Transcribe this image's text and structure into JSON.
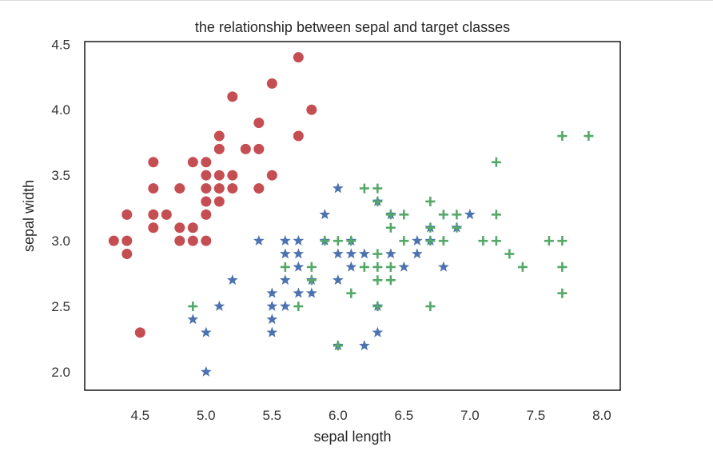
{
  "chart_data": {
    "type": "scatter",
    "title": "the relationship between sepal and target classes",
    "xlabel": "sepal length",
    "ylabel": "sepal width",
    "xlim": [
      4.08,
      8.14
    ],
    "ylim": [
      1.86,
      4.52
    ],
    "xticks": [
      "4.5",
      "5.0",
      "5.5",
      "6.0",
      "6.5",
      "7.0",
      "7.5",
      "8.0"
    ],
    "yticks": [
      "2.0",
      "2.5",
      "3.0",
      "3.5",
      "4.0",
      "4.5"
    ],
    "grid": false,
    "series": [
      {
        "marker": "circle",
        "color": "#c44e52",
        "points": [
          [
            4.3,
            3.0
          ],
          [
            4.4,
            3.2
          ],
          [
            4.4,
            3.0
          ],
          [
            4.4,
            2.9
          ],
          [
            4.5,
            2.3
          ],
          [
            4.6,
            3.6
          ],
          [
            4.6,
            3.4
          ],
          [
            4.6,
            3.2
          ],
          [
            4.6,
            3.1
          ],
          [
            4.7,
            3.2
          ],
          [
            4.8,
            3.4
          ],
          [
            4.8,
            3.1
          ],
          [
            4.8,
            3.0
          ],
          [
            4.9,
            3.6
          ],
          [
            4.9,
            3.1
          ],
          [
            4.9,
            3.0
          ],
          [
            5.0,
            3.6
          ],
          [
            5.0,
            3.5
          ],
          [
            5.0,
            3.4
          ],
          [
            5.0,
            3.3
          ],
          [
            5.0,
            3.2
          ],
          [
            5.0,
            3.0
          ],
          [
            5.1,
            3.8
          ],
          [
            5.1,
            3.7
          ],
          [
            5.1,
            3.5
          ],
          [
            5.1,
            3.4
          ],
          [
            5.1,
            3.3
          ],
          [
            5.2,
            4.1
          ],
          [
            5.2,
            3.5
          ],
          [
            5.2,
            3.4
          ],
          [
            5.3,
            3.7
          ],
          [
            5.4,
            3.9
          ],
          [
            5.4,
            3.7
          ],
          [
            5.4,
            3.4
          ],
          [
            5.5,
            4.2
          ],
          [
            5.5,
            3.5
          ],
          [
            5.7,
            4.4
          ],
          [
            5.7,
            3.8
          ],
          [
            5.8,
            4.0
          ]
        ]
      },
      {
        "marker": "star",
        "color": "#4c72b0",
        "points": [
          [
            4.9,
            2.4
          ],
          [
            5.0,
            2.3
          ],
          [
            5.0,
            2.0
          ],
          [
            5.1,
            2.5
          ],
          [
            5.2,
            2.7
          ],
          [
            5.4,
            3.0
          ],
          [
            5.5,
            2.6
          ],
          [
            5.5,
            2.5
          ],
          [
            5.5,
            2.4
          ],
          [
            5.5,
            2.3
          ],
          [
            5.6,
            3.0
          ],
          [
            5.6,
            2.9
          ],
          [
            5.6,
            2.7
          ],
          [
            5.6,
            2.5
          ],
          [
            5.7,
            3.0
          ],
          [
            5.7,
            2.9
          ],
          [
            5.7,
            2.8
          ],
          [
            5.7,
            2.6
          ],
          [
            5.8,
            2.7
          ],
          [
            5.8,
            2.6
          ],
          [
            5.9,
            3.2
          ],
          [
            5.9,
            3.0
          ],
          [
            6.0,
            3.4
          ],
          [
            6.0,
            2.9
          ],
          [
            6.0,
            2.7
          ],
          [
            6.0,
            2.2
          ],
          [
            6.1,
            3.0
          ],
          [
            6.1,
            2.9
          ],
          [
            6.1,
            2.8
          ],
          [
            6.2,
            2.9
          ],
          [
            6.2,
            2.2
          ],
          [
            6.3,
            3.3
          ],
          [
            6.3,
            2.5
          ],
          [
            6.3,
            2.3
          ],
          [
            6.4,
            3.2
          ],
          [
            6.4,
            2.9
          ],
          [
            6.5,
            2.8
          ],
          [
            6.6,
            3.0
          ],
          [
            6.6,
            2.9
          ],
          [
            6.7,
            3.1
          ],
          [
            6.7,
            3.0
          ],
          [
            6.8,
            2.8
          ],
          [
            6.9,
            3.1
          ],
          [
            7.0,
            3.2
          ]
        ]
      },
      {
        "marker": "plus",
        "color": "#55a868",
        "points": [
          [
            4.9,
            2.5
          ],
          [
            5.6,
            2.8
          ],
          [
            5.7,
            2.5
          ],
          [
            5.8,
            2.8
          ],
          [
            5.8,
            2.7
          ],
          [
            5.9,
            3.0
          ],
          [
            6.0,
            3.0
          ],
          [
            6.0,
            2.2
          ],
          [
            6.1,
            3.0
          ],
          [
            6.1,
            2.6
          ],
          [
            6.2,
            3.4
          ],
          [
            6.2,
            2.8
          ],
          [
            6.3,
            3.4
          ],
          [
            6.3,
            3.3
          ],
          [
            6.3,
            2.9
          ],
          [
            6.3,
            2.8
          ],
          [
            6.3,
            2.7
          ],
          [
            6.3,
            2.5
          ],
          [
            6.4,
            3.2
          ],
          [
            6.4,
            3.1
          ],
          [
            6.4,
            2.8
          ],
          [
            6.4,
            2.7
          ],
          [
            6.5,
            3.2
          ],
          [
            6.5,
            3.0
          ],
          [
            6.7,
            3.3
          ],
          [
            6.7,
            3.1
          ],
          [
            6.7,
            3.0
          ],
          [
            6.7,
            2.5
          ],
          [
            6.8,
            3.2
          ],
          [
            6.8,
            3.0
          ],
          [
            6.9,
            3.2
          ],
          [
            6.9,
            3.1
          ],
          [
            7.1,
            3.0
          ],
          [
            7.2,
            3.6
          ],
          [
            7.2,
            3.2
          ],
          [
            7.2,
            3.0
          ],
          [
            7.3,
            2.9
          ],
          [
            7.4,
            2.8
          ],
          [
            7.6,
            3.0
          ],
          [
            7.7,
            3.8
          ],
          [
            7.7,
            3.0
          ],
          [
            7.7,
            2.8
          ],
          [
            7.7,
            2.6
          ],
          [
            7.9,
            3.8
          ]
        ]
      }
    ]
  }
}
